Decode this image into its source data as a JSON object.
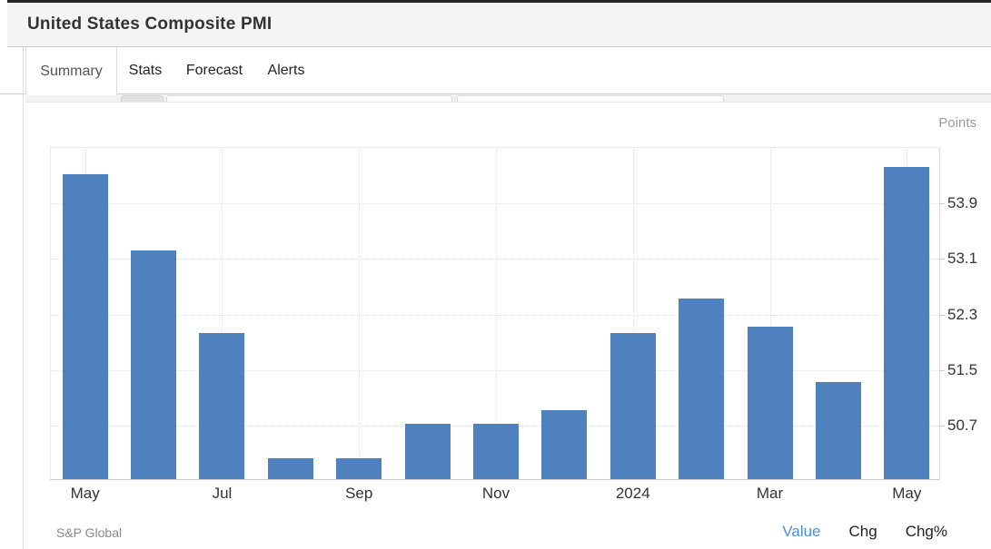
{
  "header": {
    "title": "United States Composite PMI"
  },
  "tabs": [
    {
      "label": "Summary",
      "active": true
    },
    {
      "label": "Stats",
      "active": false
    },
    {
      "label": "Forecast",
      "active": false
    },
    {
      "label": "Alerts",
      "active": false
    }
  ],
  "chart": {
    "unit_label": "Points",
    "source": "S&P Global",
    "footer_links": [
      {
        "label": "Value",
        "active": true
      },
      {
        "label": "Chg",
        "active": false
      },
      {
        "label": "Chg%",
        "active": false
      }
    ],
    "colors": {
      "bar": "#4E81BD",
      "active_link": "#4A90D9"
    }
  },
  "chart_data": {
    "type": "bar",
    "title": "United States Composite PMI",
    "ylabel": "Points",
    "categories": [
      "May 2023",
      "Jun 2023",
      "Jul 2023",
      "Aug 2023",
      "Sep 2023",
      "Oct 2023",
      "Nov 2023",
      "Dec 2023",
      "Jan 2024",
      "Feb 2024",
      "Mar 2024",
      "Apr 2024",
      "May 2024"
    ],
    "values": [
      54.3,
      53.2,
      52.0,
      50.2,
      50.2,
      50.7,
      50.7,
      50.9,
      52.0,
      52.5,
      52.1,
      51.3,
      54.4
    ],
    "x_tick_labels": [
      {
        "index": 0,
        "label": "May"
      },
      {
        "index": 2,
        "label": "Jul"
      },
      {
        "index": 4,
        "label": "Sep"
      },
      {
        "index": 6,
        "label": "Nov"
      },
      {
        "index": 8,
        "label": "2024"
      },
      {
        "index": 10,
        "label": "Mar"
      },
      {
        "index": 12,
        "label": "May"
      }
    ],
    "y_ticks": [
      53.9,
      53.1,
      52.3,
      51.5,
      50.7
    ],
    "ylim": [
      49.9,
      54.7
    ],
    "grid": "dotted",
    "legend_position": "none",
    "bar_color": "#4E81BD"
  }
}
